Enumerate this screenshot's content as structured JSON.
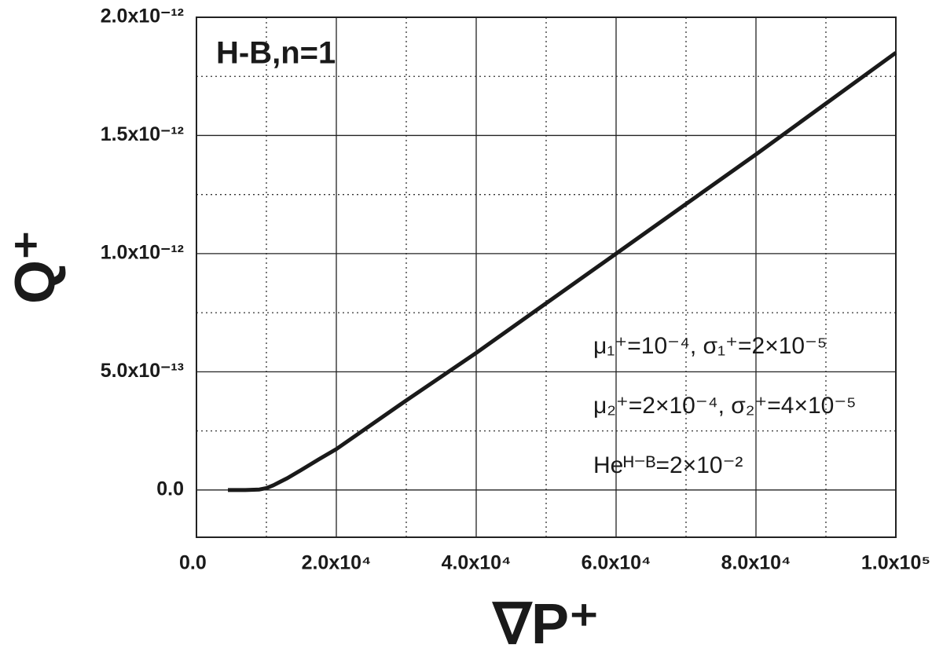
{
  "chart_data": {
    "type": "line",
    "title": "H-B,n=1",
    "xlabel": "∇P⁺",
    "ylabel": "Q⁺",
    "annotations": [
      "μ₁⁺=10⁻⁴, σ₁⁺=2×10⁻⁵",
      "μ₂⁺=2×10⁻⁴, σ₂⁺=4×10⁻⁵",
      "Heᴴ⁻ᴮ=2×10⁻²"
    ],
    "x": [
      4500,
      7000,
      9000,
      10000,
      11000,
      12000,
      13000,
      15000,
      17500,
      20000,
      30000,
      40000,
      50000,
      60000,
      70000,
      80000,
      90000,
      100000
    ],
    "values": [
      0,
      0,
      2e-15,
      8e-15,
      2e-14,
      3.5e-14,
      5e-14,
      8.5e-14,
      1.3e-13,
      1.73e-13,
      3.79e-13,
      5.8e-13,
      7.9e-13,
      1e-12,
      1.21e-12,
      1.42e-12,
      1.635e-12,
      1.85e-12
    ],
    "color": "#1a1a1a",
    "xlim": [
      0,
      100000
    ],
    "ylim": [
      -2e-13,
      2e-12
    ],
    "xticks": [
      {
        "value": 0,
        "label": "0.0"
      },
      {
        "value": 20000,
        "label": "2.0x10⁴"
      },
      {
        "value": 40000,
        "label": "4.0x10⁴"
      },
      {
        "value": 60000,
        "label": "6.0x10⁴"
      },
      {
        "value": 80000,
        "label": "8.0x10⁴"
      },
      {
        "value": 100000,
        "label": "1.0x10⁵"
      }
    ],
    "yticks": [
      {
        "value": 0,
        "label": "0.0"
      },
      {
        "value": 5e-13,
        "label": "5.0x10⁻¹³"
      },
      {
        "value": 1e-12,
        "label": "1.0x10⁻¹²"
      },
      {
        "value": 1.5e-12,
        "label": "1.5x10⁻¹²"
      },
      {
        "value": 2e-12,
        "label": "2.0x10⁻¹²"
      }
    ],
    "xticks_minor": [
      10000,
      30000,
      50000,
      70000,
      90000
    ],
    "yticks_minor": [
      2.5e-13,
      7.5e-13,
      1.25e-12,
      1.75e-12
    ],
    "grid": true
  }
}
